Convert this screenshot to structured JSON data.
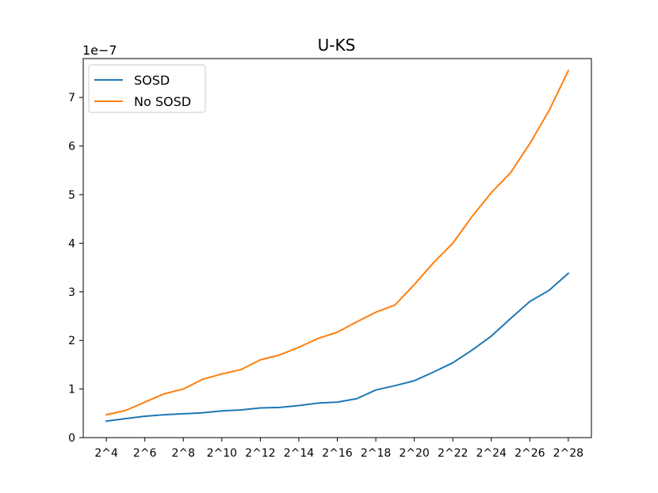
{
  "chart_data": {
    "type": "line",
    "title": "U-KS",
    "xlabel": "",
    "ylabel": "",
    "y_offset_text": "1e−7",
    "ylim": [
      0,
      7.8
    ],
    "yticks": [
      0,
      1,
      2,
      3,
      4,
      5,
      6,
      7
    ],
    "ytick_labels": [
      "0",
      "1",
      "2",
      "3",
      "4",
      "5",
      "6",
      "7"
    ],
    "x": [
      4,
      5,
      6,
      7,
      8,
      9,
      10,
      11,
      12,
      13,
      14,
      15,
      16,
      17,
      18,
      19,
      20,
      21,
      22,
      23,
      24,
      25,
      26,
      27,
      28
    ],
    "xticks": [
      4,
      6,
      8,
      10,
      12,
      14,
      16,
      18,
      20,
      22,
      24,
      26,
      28
    ],
    "xtick_labels": [
      "2^4",
      "2^6",
      "2^8",
      "2^10",
      "2^12",
      "2^14",
      "2^16",
      "2^18",
      "2^20",
      "2^22",
      "2^24",
      "2^26",
      "2^28"
    ],
    "grid": false,
    "legend_position": "top-left",
    "series": [
      {
        "name": "SOSD",
        "color": "#1f77b4",
        "values": [
          0.34,
          0.39,
          0.44,
          0.47,
          0.49,
          0.51,
          0.55,
          0.57,
          0.61,
          0.62,
          0.66,
          0.71,
          0.73,
          0.8,
          0.98,
          1.07,
          1.17,
          1.35,
          1.54,
          1.8,
          2.09,
          2.45,
          2.8,
          3.03,
          3.38
        ]
      },
      {
        "name": "No SOSD",
        "color": "#ff7f0e",
        "values": [
          0.47,
          0.56,
          0.73,
          0.9,
          1.0,
          1.2,
          1.31,
          1.4,
          1.6,
          1.7,
          1.86,
          2.04,
          2.17,
          2.38,
          2.58,
          2.73,
          3.15,
          3.6,
          4.0,
          4.55,
          5.04,
          5.45,
          6.05,
          6.73,
          7.55
        ]
      }
    ]
  }
}
